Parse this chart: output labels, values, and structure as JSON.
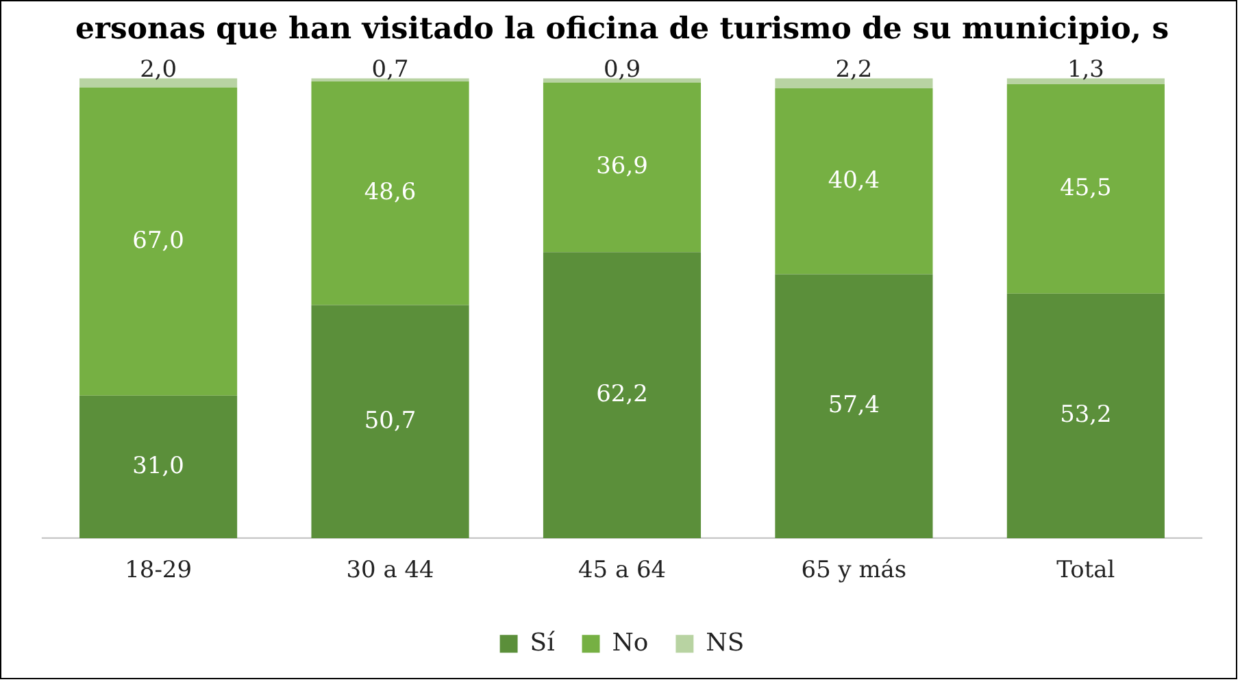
{
  "chart_data": {
    "type": "bar",
    "title": "ersonas que han visitado la oficina de turismo de su municipio, s",
    "categories": [
      "18-29",
      "30 a 44",
      "45 a 64",
      "65 y más",
      "Total"
    ],
    "stacked": true,
    "legend": "bottom",
    "grid": false,
    "series": [
      {
        "name": "Sí",
        "color": "#5b8f3a",
        "values": [
          31.0,
          50.7,
          62.2,
          57.4,
          53.2
        ],
        "value_labels": [
          "31,0",
          "50,7",
          "62,2",
          "57,4",
          "53,2"
        ]
      },
      {
        "name": "No",
        "color": "#76b043",
        "values": [
          67.0,
          48.6,
          36.9,
          40.4,
          45.5
        ],
        "value_labels": [
          "67,0",
          "48,6",
          "36,9",
          "40,4",
          "45,5"
        ]
      },
      {
        "name": "NS",
        "color": "#b8d3a2",
        "values": [
          2.0,
          0.7,
          0.9,
          2.2,
          1.3
        ],
        "value_labels": [
          "2,0",
          "0,7",
          "0,9",
          "2,2",
          "1,3"
        ]
      }
    ]
  }
}
